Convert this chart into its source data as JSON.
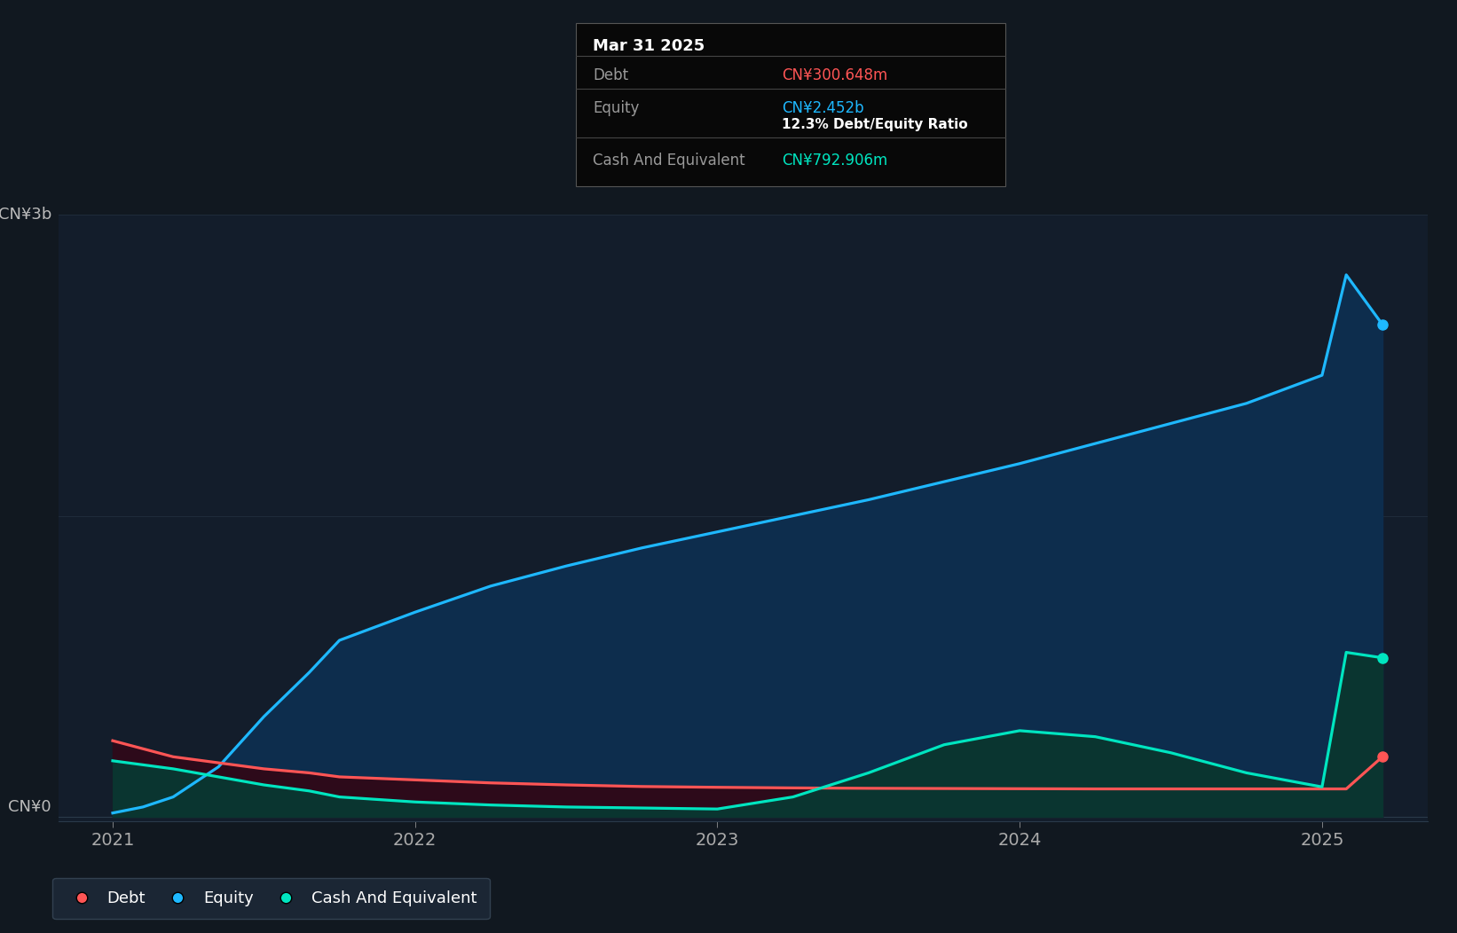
{
  "bg_color": "#111820",
  "plot_bg_color": "#111820",
  "chart_inner_bg": "#131d2b",
  "ylabel_top": "CN¥3b",
  "ylabel_zero": "CN¥0",
  "x_ticks": [
    2021,
    2022,
    2023,
    2024,
    2025
  ],
  "tooltip": {
    "date": "Mar 31 2025",
    "debt_label": "Debt",
    "debt_value": "CN¥300.648m",
    "equity_label": "Equity",
    "equity_value": "CN¥2.452b",
    "ratio_text": "12.3% Debt/Equity Ratio",
    "cash_label": "Cash And Equivalent",
    "cash_value": "CN¥792.906m"
  },
  "equity_color": "#1eb8ff",
  "debt_color": "#ff5555",
  "cash_color": "#00e5c0",
  "equity_fill": "#0d2d4d",
  "debt_fill": "#2d0a1a",
  "cash_fill": "#0a3530",
  "grid_color": "#2a3a4a",
  "legend_bg": "#1e2a3a",
  "time_points": [
    2021.0,
    2021.1,
    2021.2,
    2021.35,
    2021.5,
    2021.65,
    2021.75,
    2022.0,
    2022.25,
    2022.5,
    2022.75,
    2023.0,
    2023.25,
    2023.5,
    2023.75,
    2024.0,
    2024.25,
    2024.5,
    2024.75,
    2025.0,
    2025.08,
    2025.2
  ],
  "equity_values": [
    0.02,
    0.05,
    0.1,
    0.25,
    0.5,
    0.72,
    0.88,
    1.02,
    1.15,
    1.25,
    1.34,
    1.42,
    1.5,
    1.58,
    1.67,
    1.76,
    1.86,
    1.96,
    2.06,
    2.2,
    2.7,
    2.452
  ],
  "debt_values": [
    0.38,
    0.34,
    0.3,
    0.27,
    0.24,
    0.22,
    0.2,
    0.185,
    0.17,
    0.16,
    0.152,
    0.148,
    0.145,
    0.143,
    0.142,
    0.141,
    0.14,
    0.14,
    0.14,
    0.14,
    0.14,
    0.300648
  ],
  "cash_values": [
    0.28,
    0.26,
    0.24,
    0.2,
    0.16,
    0.13,
    0.1,
    0.075,
    0.06,
    0.05,
    0.045,
    0.04,
    0.1,
    0.22,
    0.36,
    0.43,
    0.4,
    0.32,
    0.22,
    0.15,
    0.82,
    0.792906
  ],
  "ylim_max": 3.0,
  "xlim_min": 2020.82,
  "xlim_max": 2025.35
}
